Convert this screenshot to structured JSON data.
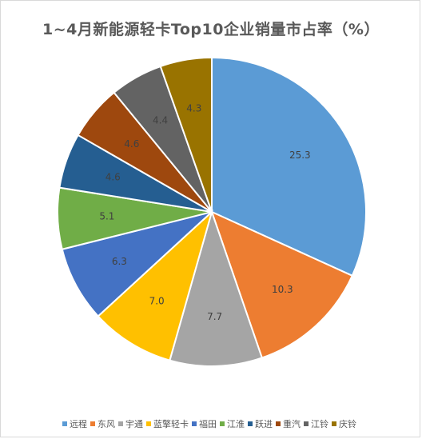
{
  "chart_data": {
    "type": "pie",
    "title": "1~4月新能源轻卡Top10企业销量市占率（%）",
    "categories": [
      "远程",
      "东风",
      "宇通",
      "蓝擎轻卡",
      "福田",
      "江淮",
      "跃进",
      "重汽",
      "江铃",
      "庆铃"
    ],
    "values": [
      25.3,
      10.3,
      7.7,
      7.0,
      6.3,
      5.1,
      4.6,
      4.6,
      4.4,
      4.3
    ],
    "labels": [
      "25.3",
      "10.3",
      "7.7",
      "7.0",
      "6.3",
      "5.1",
      "4.6",
      "4.6",
      "4.4",
      "4.3"
    ],
    "colors": [
      "#5b9bd5",
      "#ed7d31",
      "#a5a5a5",
      "#ffc000",
      "#4472c4",
      "#70ad47",
      "#255e91",
      "#9e480e",
      "#636363",
      "#997300"
    ],
    "legend_position": "bottom",
    "start_angle_deg": 0,
    "direction": "clockwise"
  }
}
